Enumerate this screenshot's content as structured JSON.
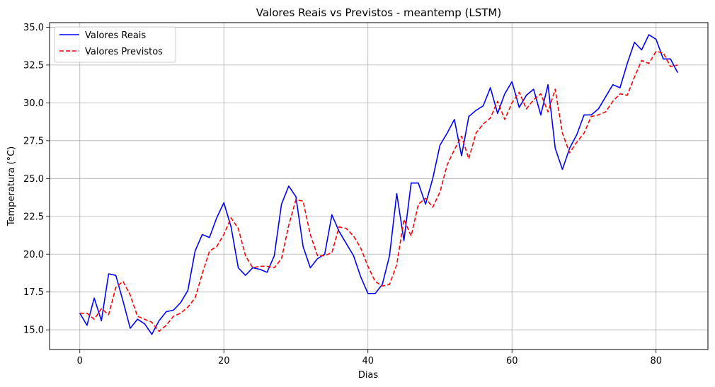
{
  "chart_data": {
    "type": "line",
    "title": "Valores Reais vs Previstos - meantemp (LSTM)",
    "xlabel": "Dias",
    "ylabel": "Temperatura (°C)",
    "xlim": [
      -4.2,
      87.2
    ],
    "ylim": [
      13.7,
      35.3
    ],
    "xticks": [
      0,
      20,
      40,
      60,
      80
    ],
    "yticks": [
      15.0,
      17.5,
      20.0,
      22.5,
      25.0,
      27.5,
      30.0,
      32.5,
      35.0
    ],
    "grid": true,
    "legend_position": "top-left",
    "series": [
      {
        "name": "Valores Reais",
        "color": "#0000ff",
        "style": "solid",
        "values": [
          16.1,
          15.3,
          17.1,
          15.6,
          18.7,
          18.6,
          16.9,
          15.1,
          15.7,
          15.4,
          14.7,
          15.6,
          16.2,
          16.3,
          16.8,
          17.6,
          20.2,
          21.3,
          21.1,
          22.4,
          23.4,
          21.8,
          19.1,
          18.6,
          19.1,
          19.0,
          18.8,
          19.9,
          23.3,
          24.5,
          23.8,
          20.5,
          19.1,
          19.7,
          20.0,
          22.6,
          21.5,
          20.7,
          19.9,
          18.5,
          17.4,
          17.4,
          18.0,
          19.9,
          24.0,
          20.9,
          24.7,
          24.7,
          23.3,
          25.0,
          27.2,
          28.0,
          28.9,
          26.5,
          29.1,
          29.5,
          29.8,
          31.0,
          29.3,
          30.6,
          31.4,
          29.7,
          30.5,
          30.9,
          29.2,
          31.2,
          27.0,
          25.6,
          27.0,
          27.9,
          29.2,
          29.2,
          29.6,
          30.4,
          31.2,
          31.0,
          32.6,
          34.0,
          33.5,
          34.5,
          34.2,
          32.9,
          32.9,
          32.0
        ]
      },
      {
        "name": "Valores Previstos",
        "color": "#ff0000",
        "style": "dashed",
        "values": [
          16.1,
          16.1,
          15.7,
          16.4,
          16.0,
          17.8,
          18.2,
          17.3,
          15.9,
          15.7,
          15.5,
          14.9,
          15.3,
          15.9,
          16.1,
          16.5,
          17.1,
          18.7,
          20.2,
          20.5,
          21.3,
          22.4,
          21.7,
          19.9,
          19.1,
          19.2,
          19.2,
          19.1,
          19.7,
          21.9,
          23.6,
          23.5,
          21.3,
          19.9,
          19.9,
          20.1,
          21.8,
          21.7,
          21.2,
          20.4,
          19.2,
          18.2,
          17.9,
          18.0,
          19.3,
          22.3,
          21.2,
          23.3,
          23.7,
          23.1,
          24.1,
          25.9,
          26.9,
          27.8,
          26.3,
          28.0,
          28.6,
          29.0,
          30.1,
          28.9,
          30.0,
          30.7,
          29.6,
          30.2,
          30.6,
          29.4,
          30.9,
          28.0,
          26.7,
          27.4,
          28.0,
          29.1,
          29.2,
          29.4,
          30.1,
          30.6,
          30.5,
          31.7,
          32.8,
          32.6,
          33.4,
          33.3,
          32.4,
          32.5
        ]
      }
    ]
  }
}
